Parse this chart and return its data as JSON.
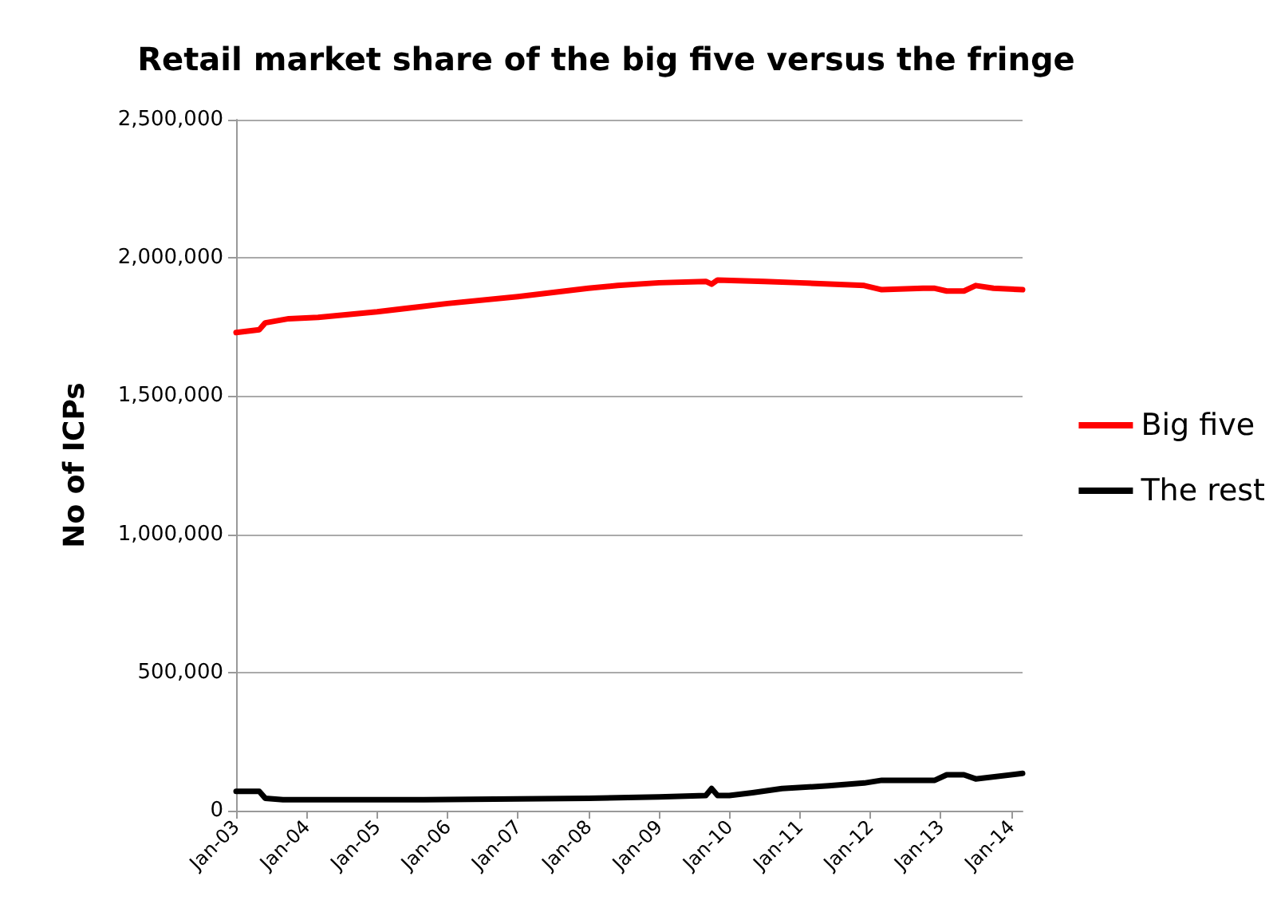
{
  "chart_data": {
    "type": "line",
    "title": "Retail market share of the big five versus the fringe",
    "ylabel": "No of ICPs",
    "xlim": [
      "2003-01",
      "2014-03"
    ],
    "xticks": [
      {
        "value": "2003-01",
        "label": "Jan-03"
      },
      {
        "value": "2004-01",
        "label": "Jan-04"
      },
      {
        "value": "2005-01",
        "label": "Jan-05"
      },
      {
        "value": "2006-01",
        "label": "Jan-06"
      },
      {
        "value": "2007-01",
        "label": "Jan-07"
      },
      {
        "value": "2008-01",
        "label": "Jan-08"
      },
      {
        "value": "2009-01",
        "label": "Jan-09"
      },
      {
        "value": "2010-01",
        "label": "Jan-10"
      },
      {
        "value": "2011-01",
        "label": "Jan-11"
      },
      {
        "value": "2012-01",
        "label": "Jan-12"
      },
      {
        "value": "2013-01",
        "label": "Jan-13"
      },
      {
        "value": "2014-01",
        "label": "Jan-14"
      }
    ],
    "ylim": [
      0,
      2500000
    ],
    "yticks": [
      {
        "value": 0,
        "label": "0"
      },
      {
        "value": 500000,
        "label": "500,000"
      },
      {
        "value": 1000000,
        "label": "1,000,000"
      },
      {
        "value": 1500000,
        "label": "1,500,000"
      },
      {
        "value": 2000000,
        "label": "2,000,000"
      },
      {
        "value": 2500000,
        "label": "2,500,000"
      }
    ],
    "grid": "y",
    "legend": "right",
    "marker": "none",
    "line_style": "solid",
    "series": [
      {
        "name": "Big five",
        "color": "#ff0000",
        "x": [
          "2003-01",
          "2003-05",
          "2003-06",
          "2003-10",
          "2004-03",
          "2005-01",
          "2006-01",
          "2007-01",
          "2008-01",
          "2008-06",
          "2009-01",
          "2009-09",
          "2009-10",
          "2009-11",
          "2010-07",
          "2011-01",
          "2011-12",
          "2012-03",
          "2012-10",
          "2012-12",
          "2013-02",
          "2013-05",
          "2013-07",
          "2013-10",
          "2014-03"
        ],
        "values": [
          1730000,
          1740000,
          1765000,
          1780000,
          1785000,
          1805000,
          1835000,
          1860000,
          1890000,
          1900000,
          1910000,
          1915000,
          1905000,
          1920000,
          1915000,
          1910000,
          1900000,
          1885000,
          1890000,
          1890000,
          1880000,
          1880000,
          1900000,
          1890000,
          1885000
        ]
      },
      {
        "name": "The rest",
        "color": "#000000",
        "x": [
          "2003-01",
          "2003-05",
          "2003-06",
          "2003-09",
          "2005-09",
          "2008-01",
          "2009-01",
          "2009-09",
          "2009-10",
          "2009-11",
          "2010-01",
          "2010-05",
          "2010-10",
          "2011-06",
          "2011-12",
          "2012-03",
          "2012-12",
          "2013-02",
          "2013-05",
          "2013-07",
          "2014-03"
        ],
        "values": [
          70000,
          70000,
          45000,
          40000,
          40000,
          45000,
          50000,
          55000,
          80000,
          55000,
          55000,
          65000,
          80000,
          90000,
          100000,
          110000,
          110000,
          130000,
          130000,
          115000,
          135000
        ]
      }
    ]
  }
}
